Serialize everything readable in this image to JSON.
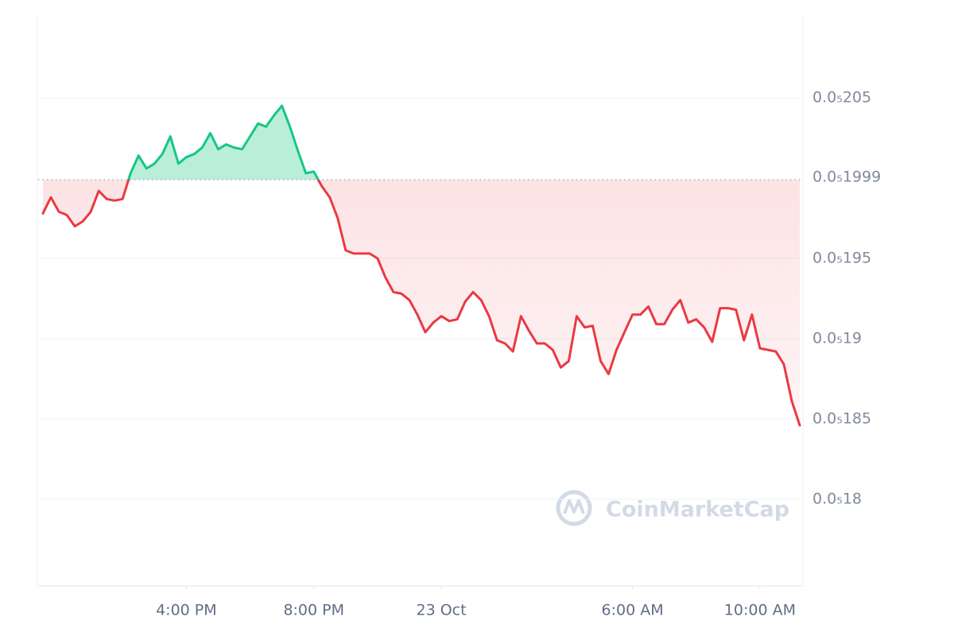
{
  "chart_data": {
    "type": "line",
    "x": [
      11.5,
      11.75,
      12,
      12.25,
      12.5,
      12.75,
      13,
      13.25,
      13.5,
      13.75,
      14,
      14.25,
      14.5,
      14.75,
      15,
      15.25,
      15.5,
      15.75,
      16,
      16.25,
      16.5,
      16.75,
      17,
      17.25,
      17.5,
      17.75,
      18,
      18.25,
      18.5,
      18.75,
      19,
      19.25,
      19.5,
      19.75,
      20,
      20.25,
      20.5,
      20.75,
      21,
      21.25,
      21.5,
      21.75,
      22,
      22.25,
      22.5,
      22.75,
      23,
      23.25,
      23.5,
      23.75,
      24,
      24.25,
      24.5,
      24.75,
      25,
      25.25,
      25.5,
      25.75,
      26,
      26.25,
      26.5,
      26.75,
      27,
      27.25,
      27.5,
      27.75,
      28,
      28.25,
      28.5,
      28.75,
      29,
      29.25,
      29.5,
      29.75,
      30,
      30.25,
      30.5,
      30.75,
      31,
      31.25,
      31.5,
      31.75,
      32,
      32.25,
      32.5,
      32.75,
      33,
      33.25,
      33.5,
      33.75,
      34,
      34.25,
      34.5,
      34.75,
      35,
      35.25
    ],
    "values": [
      1.978e-06,
      1.988e-06,
      1.979e-06,
      1.977e-06,
      1.97e-06,
      1.973e-06,
      1.979e-06,
      1.992e-06,
      1.987e-06,
      1.986e-06,
      1.987e-06,
      2.003e-06,
      2.014e-06,
      2.006e-06,
      2.009e-06,
      2.015e-06,
      2.026e-06,
      2.009e-06,
      2.013e-06,
      2.015e-06,
      2.019e-06,
      2.028e-06,
      2.018e-06,
      2.021e-06,
      2.019e-06,
      2.018e-06,
      2.026e-06,
      2.034e-06,
      2.032e-06,
      2.039e-06,
      2.045e-06,
      2.032e-06,
      2.017e-06,
      2.003e-06,
      2.004e-06,
      1.995e-06,
      1.988e-06,
      1.975e-06,
      1.955e-06,
      1.953e-06,
      1.953e-06,
      1.953e-06,
      1.95e-06,
      1.938e-06,
      1.929e-06,
      1.928e-06,
      1.924e-06,
      1.915e-06,
      1.904e-06,
      1.91e-06,
      1.914e-06,
      1.911e-06,
      1.912e-06,
      1.923e-06,
      1.929e-06,
      1.924e-06,
      1.914e-06,
      1.899e-06,
      1.897e-06,
      1.892e-06,
      1.914e-06,
      1.905e-06,
      1.897e-06,
      1.897e-06,
      1.893e-06,
      1.882e-06,
      1.886e-06,
      1.914e-06,
      1.907e-06,
      1.908e-06,
      1.886e-06,
      1.878e-06,
      1.893e-06,
      1.904e-06,
      1.915e-06,
      1.915e-06,
      1.92e-06,
      1.909e-06,
      1.909e-06,
      1.918e-06,
      1.924e-06,
      1.91e-06,
      1.912e-06,
      1.907e-06,
      1.898e-06,
      1.919e-06,
      1.919e-06,
      1.918e-06,
      1.899e-06,
      1.915e-06,
      1.894e-06,
      1.893e-06,
      1.892e-06,
      1.884e-06,
      1.861e-06,
      1.846e-06
    ],
    "color_up": "#16c784",
    "color_down": "#ea3943",
    "baseline": {
      "value": 1.999e-06,
      "label": "0.0₅1999"
    },
    "xlim": [
      11.35,
      35.3
    ],
    "xticks": [
      {
        "value": 16,
        "label": "4:00 PM"
      },
      {
        "value": 20,
        "label": "8:00 PM"
      },
      {
        "value": 24,
        "label": "23 Oct"
      },
      {
        "value": 30,
        "label": "6:00 AM"
      },
      {
        "value": 34,
        "label": "10:00 AM"
      }
    ],
    "ylim": [
      1.746e-06,
      2.102e-06
    ],
    "yticks": [
      {
        "value": 2.05e-06,
        "label": "0.0₅205"
      },
      {
        "value": 1.95e-06,
        "label": "0.0₅195"
      },
      {
        "value": 1.9e-06,
        "label": "0.0₅19"
      },
      {
        "value": 1.85e-06,
        "label": "0.0₅185"
      },
      {
        "value": 1.8e-06,
        "label": "0.0₅18"
      }
    ],
    "grid": true,
    "watermark": "CoinMarketCap"
  }
}
